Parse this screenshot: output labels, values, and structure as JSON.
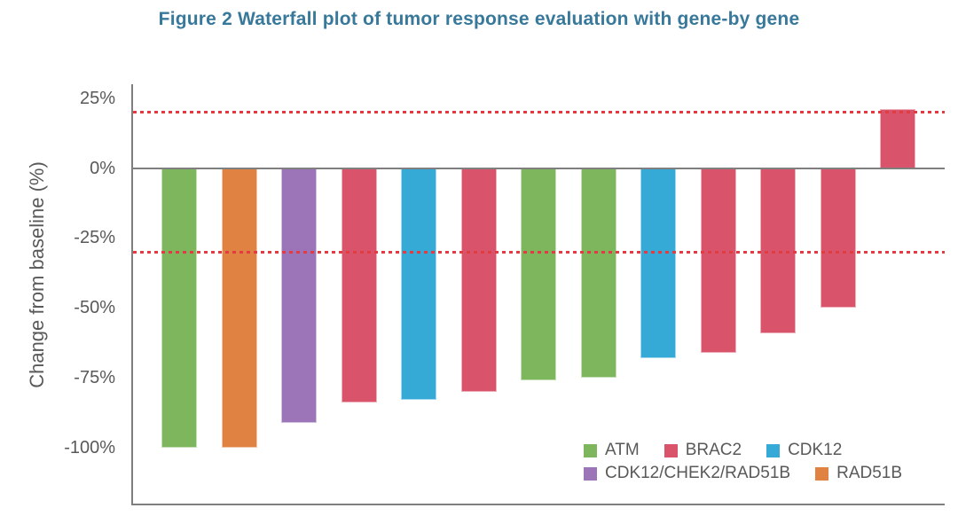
{
  "figure": {
    "title": "Figure 2 Waterfall plot of tumor response evaluation with gene-by gene",
    "title_color": "#38799B"
  },
  "chart_data": {
    "type": "bar",
    "title": "Figure 2 Waterfall plot of tumor response evaluation with gene-by gene",
    "xlabel": "",
    "ylabel": "Change from baseline (%)",
    "ylim": [
      -120,
      30
    ],
    "grid": false,
    "axis_color": "#7F7F7F",
    "tick_text_color": "#595959",
    "yticks": [
      {
        "value": 25,
        "label": "25%"
      },
      {
        "value": 0,
        "label": "0%"
      },
      {
        "value": -25,
        "label": "-25%"
      },
      {
        "value": -50,
        "label": "-50%"
      },
      {
        "value": -75,
        "label": "-75%"
      },
      {
        "value": -100,
        "label": "-100%"
      }
    ],
    "reference_lines": [
      {
        "value": 20,
        "style": "dashed",
        "color": "#E03C43"
      },
      {
        "value": -30,
        "style": "dashed",
        "color": "#E03C43"
      }
    ],
    "categories": [
      "ATM",
      "RAD51B",
      "CDK12/CHEK2/RAD51B",
      "BRAC2",
      "CDK12",
      "BRAC2",
      "ATM",
      "ATM",
      "CDK12",
      "BRAC2",
      "BRAC2",
      "BRAC2",
      "BRAC2"
    ],
    "values": [
      -100,
      -100,
      -91,
      -84,
      -83,
      -80,
      -76,
      -75,
      -68,
      -66,
      -59,
      -50,
      21
    ],
    "legend_position": "inside-bottom-right",
    "legend": [
      {
        "label": "ATM",
        "color": "#7DB65C",
        "row": 0
      },
      {
        "label": "BRAC2",
        "color": "#D9536B",
        "row": 0
      },
      {
        "label": "CDK12",
        "color": "#36AAD7",
        "row": 0
      },
      {
        "label": "CDK12/CHEK2/RAD51B",
        "color": "#9C74B8",
        "row": 1
      },
      {
        "label": "RAD51B",
        "color": "#E08241",
        "row": 1
      }
    ]
  }
}
